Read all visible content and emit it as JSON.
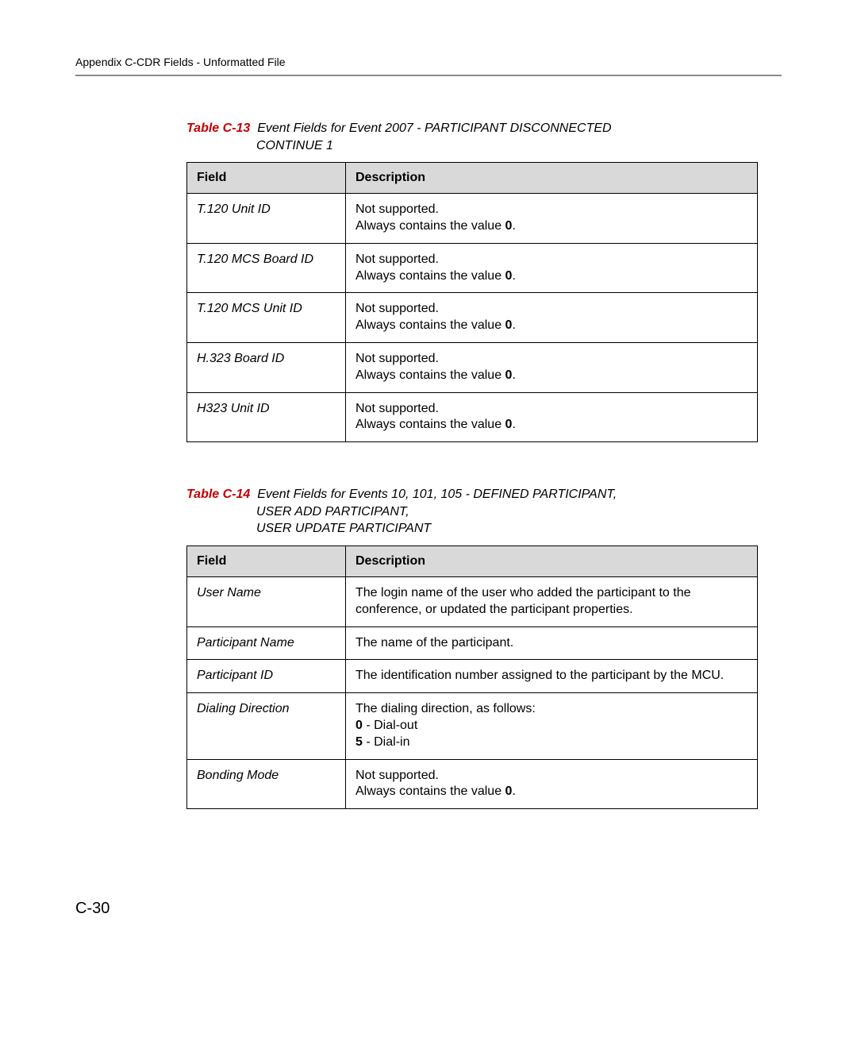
{
  "running_header": "Appendix C-CDR Fields - Unformatted File",
  "caption1": {
    "label": "Table C-13",
    "title_line1": "Event Fields for Event 2007 - PARTICIPANT DISCONNECTED",
    "title_line2": "CONTINUE 1"
  },
  "table1": {
    "head_field": "Field",
    "head_desc": "Description",
    "rows": [
      {
        "field": "T.120 Unit ID",
        "d1": "Not supported.",
        "d2a": "Always contains the value ",
        "d2b": "0",
        "d2c": "."
      },
      {
        "field": "T.120 MCS Board ID",
        "d1": "Not supported.",
        "d2a": "Always contains the value ",
        "d2b": "0",
        "d2c": "."
      },
      {
        "field": "T.120 MCS Unit ID",
        "d1": "Not supported.",
        "d2a": "Always contains the value ",
        "d2b": "0",
        "d2c": "."
      },
      {
        "field": "H.323 Board ID",
        "d1": "Not supported.",
        "d2a": "Always contains the value ",
        "d2b": "0",
        "d2c": "."
      },
      {
        "field": "H323 Unit ID",
        "d1": "Not supported.",
        "d2a": "Always contains the value ",
        "d2b": "0",
        "d2c": "."
      }
    ]
  },
  "caption2": {
    "label": "Table C-14",
    "title_line1": "Event Fields for Events 10, 101, 105 - DEFINED PARTICIPANT,",
    "title_line2": "USER ADD PARTICIPANT,",
    "title_line3": "USER UPDATE PARTICIPANT"
  },
  "table2": {
    "head_field": "Field",
    "head_desc": "Description",
    "rows": {
      "r0": {
        "field": "User Name",
        "desc": "The login name of the user who added the participant to the conference, or updated the participant properties."
      },
      "r1": {
        "field": "Participant Name",
        "desc": "The name of the participant."
      },
      "r2": {
        "field": "Participant ID",
        "desc": "The identification number assigned to the participant by the MCU."
      },
      "r3": {
        "field": "Dialing Direction",
        "line1": "The dialing direction, as follows:",
        "b0": "0",
        "t0": " - Dial-out",
        "b5": "5",
        "t5": " - Dial-in"
      },
      "r4": {
        "field": "Bonding Mode",
        "d1": "Not supported.",
        "d2a": "Always contains the value ",
        "d2b": "0",
        "d2c": "."
      }
    }
  },
  "page_number": "C-30"
}
